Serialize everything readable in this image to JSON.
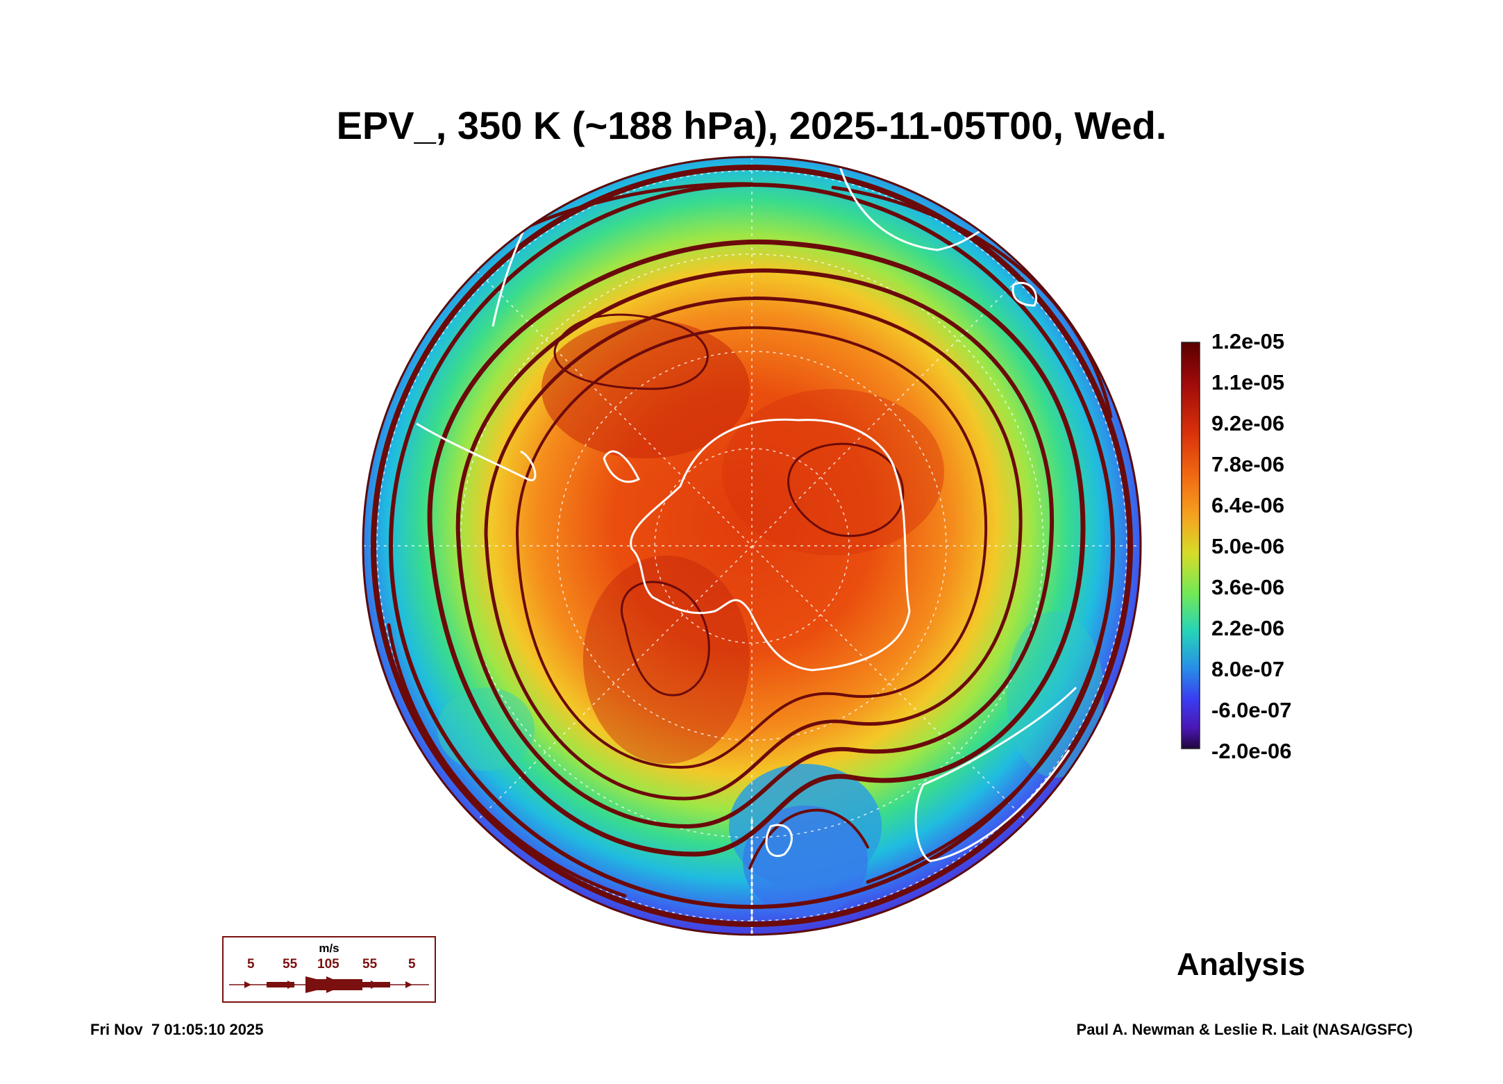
{
  "title": "EPV_, 350 K (~188 hPa), 2025-11-05T00, Wed.",
  "colorbar": {
    "labels": [
      "1.2e-05",
      "1.1e-05",
      "9.2e-06",
      "7.8e-06",
      "6.4e-06",
      "5.0e-06",
      "3.6e-06",
      "2.2e-06",
      "8.0e-07",
      "-6.0e-07",
      "-2.0e-06"
    ],
    "colors": [
      "#6b0000",
      "#a50a0a",
      "#d62a0a",
      "#f26410",
      "#f5a020",
      "#d6dc28",
      "#78e850",
      "#28d8b0",
      "#2896e8",
      "#3c3cf0",
      "#4a18b8",
      "#2a0a60"
    ]
  },
  "vector_legend": {
    "unit": "m/s",
    "values": [
      "5",
      "55",
      "105",
      "55",
      "5"
    ]
  },
  "analysis_label": "Analysis",
  "footer": {
    "timestamp": "Fri Nov  7 01:05:10 2025",
    "credit": "Paul A. Newman & Leslie R. Lait (NASA/GSFC)"
  },
  "colors": {
    "streamline": "#6b0a0a",
    "coastline": "#ffffff"
  }
}
